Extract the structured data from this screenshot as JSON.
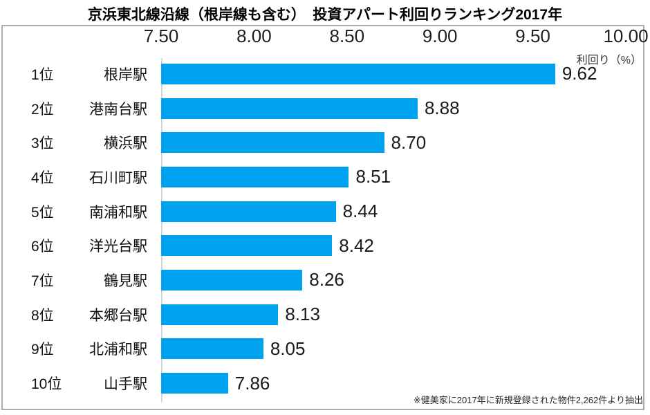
{
  "title": "京浜東北線沿線（根岸線も含む）　投資アパート利回りランキング2017年",
  "unit_label": "利回り（%）",
  "footnote": "※健美家に2017年に新規登録された物件2,262件より抽出",
  "colors": {
    "bar": "#00A2F0",
    "box_border": "#ACACAC",
    "axis_line": "#D6D6D6",
    "text": "#111111"
  },
  "chart_data": {
    "type": "bar",
    "orientation": "horizontal",
    "title": "京浜東北線沿線（根岸線も含む）　投資アパート利回りランキング2017年",
    "xlabel": "利回り（%）",
    "xlim": [
      7.5,
      10.0
    ],
    "x_ticks": [
      "7.50",
      "8.00",
      "8.50",
      "9.00",
      "9.50",
      "10.00"
    ],
    "x_tick_values": [
      7.5,
      8.0,
      8.5,
      9.0,
      9.5,
      10.0
    ],
    "grid": false,
    "legend": false,
    "ranks": [
      "1位",
      "2位",
      "3位",
      "4位",
      "5位",
      "6位",
      "7位",
      "8位",
      "9位",
      "10位"
    ],
    "categories": [
      "根岸駅",
      "港南台駅",
      "横浜駅",
      "石川町駅",
      "南浦和駅",
      "洋光台駅",
      "鶴見駅",
      "本郷台駅",
      "北浦和駅",
      "山手駅"
    ],
    "values": [
      9.62,
      8.88,
      8.7,
      8.51,
      8.44,
      8.42,
      8.26,
      8.13,
      8.05,
      7.86
    ],
    "value_labels": [
      "9.62",
      "8.88",
      "8.70",
      "8.51",
      "8.44",
      "8.42",
      "8.26",
      "8.13",
      "8.05",
      "7.86"
    ],
    "annotation": "※健美家に2017年に新規登録された物件2,262件より抽出"
  }
}
